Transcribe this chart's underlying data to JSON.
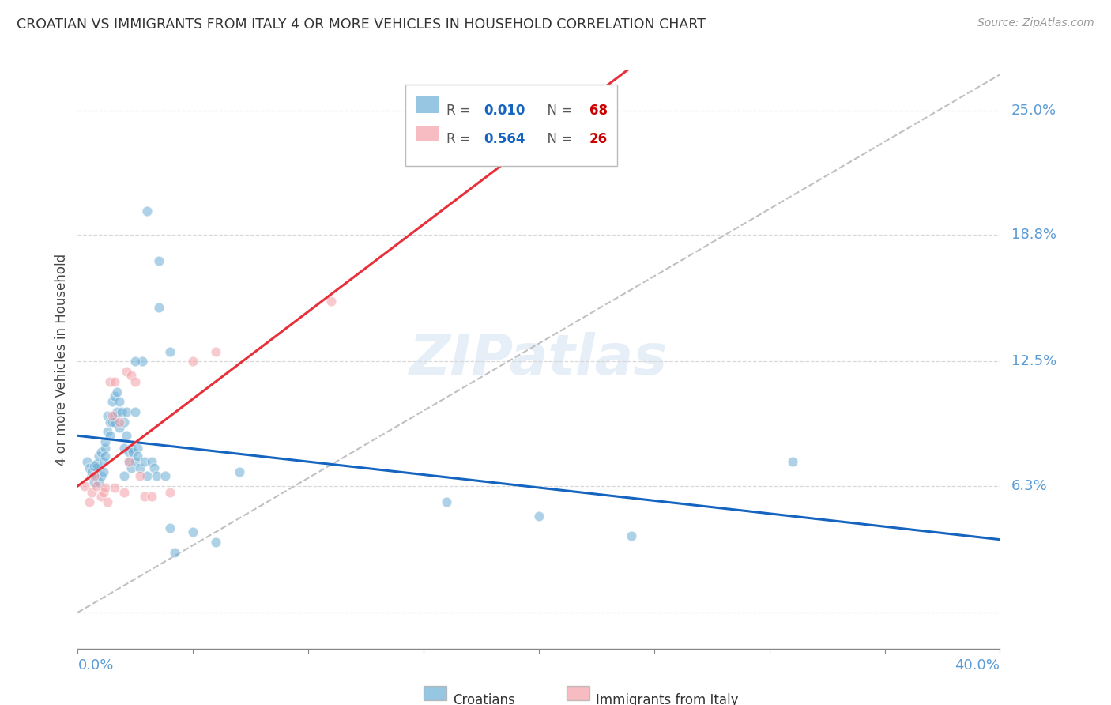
{
  "title": "CROATIAN VS IMMIGRANTS FROM ITALY 4 OR MORE VEHICLES IN HOUSEHOLD CORRELATION CHART",
  "source": "Source: ZipAtlas.com",
  "ylabel": "4 or more Vehicles in Household",
  "x_lim": [
    0.0,
    0.4
  ],
  "y_lim": [
    -0.018,
    0.27
  ],
  "y_ticks": [
    0.0,
    0.063,
    0.125,
    0.188,
    0.25
  ],
  "y_tick_labels": [
    "",
    "6.3%",
    "12.5%",
    "18.8%",
    "25.0%"
  ],
  "watermark": "ZIPatlas",
  "blue_scatter_color": "#6baed6",
  "pink_scatter_color": "#f4a0a8",
  "blue_line_color": "#1565c0",
  "pink_line_color": "#e8303a",
  "gray_dash_color": "#c0c0c0",
  "grid_color": "#d8d8d8",
  "right_label_color": "#5b9bd5",
  "croatians_x": [
    0.004,
    0.005,
    0.006,
    0.006,
    0.007,
    0.007,
    0.008,
    0.008,
    0.008,
    0.009,
    0.009,
    0.01,
    0.01,
    0.011,
    0.011,
    0.012,
    0.012,
    0.012,
    0.013,
    0.013,
    0.014,
    0.014,
    0.015,
    0.015,
    0.016,
    0.016,
    0.016,
    0.017,
    0.017,
    0.018,
    0.018,
    0.019,
    0.02,
    0.02,
    0.021,
    0.021,
    0.022,
    0.022,
    0.023,
    0.023,
    0.024,
    0.025,
    0.025,
    0.026,
    0.026,
    0.027,
    0.028,
    0.029,
    0.03,
    0.032,
    0.033,
    0.034,
    0.035,
    0.038,
    0.04,
    0.042,
    0.16,
    0.2,
    0.24,
    0.31,
    0.04,
    0.035,
    0.03,
    0.025,
    0.02,
    0.05,
    0.06,
    0.07
  ],
  "croatians_y": [
    0.075,
    0.072,
    0.068,
    0.07,
    0.065,
    0.073,
    0.072,
    0.068,
    0.074,
    0.065,
    0.078,
    0.068,
    0.08,
    0.075,
    0.07,
    0.082,
    0.078,
    0.085,
    0.09,
    0.098,
    0.088,
    0.095,
    0.095,
    0.105,
    0.098,
    0.108,
    0.095,
    0.11,
    0.1,
    0.105,
    0.092,
    0.1,
    0.095,
    0.082,
    0.1,
    0.088,
    0.08,
    0.075,
    0.072,
    0.082,
    0.08,
    0.1,
    0.075,
    0.082,
    0.078,
    0.072,
    0.125,
    0.075,
    0.068,
    0.075,
    0.072,
    0.068,
    0.152,
    0.068,
    0.042,
    0.03,
    0.055,
    0.048,
    0.038,
    0.075,
    0.13,
    0.175,
    0.2,
    0.125,
    0.068,
    0.04,
    0.035,
    0.07
  ],
  "italy_x": [
    0.003,
    0.005,
    0.006,
    0.007,
    0.008,
    0.01,
    0.011,
    0.012,
    0.013,
    0.014,
    0.015,
    0.016,
    0.016,
    0.018,
    0.02,
    0.021,
    0.022,
    0.023,
    0.025,
    0.027,
    0.029,
    0.032,
    0.04,
    0.05,
    0.06,
    0.11
  ],
  "italy_y": [
    0.063,
    0.055,
    0.06,
    0.068,
    0.063,
    0.058,
    0.06,
    0.062,
    0.055,
    0.115,
    0.098,
    0.062,
    0.115,
    0.095,
    0.06,
    0.12,
    0.075,
    0.118,
    0.115,
    0.068,
    0.058,
    0.058,
    0.06,
    0.125,
    0.13,
    0.155
  ]
}
